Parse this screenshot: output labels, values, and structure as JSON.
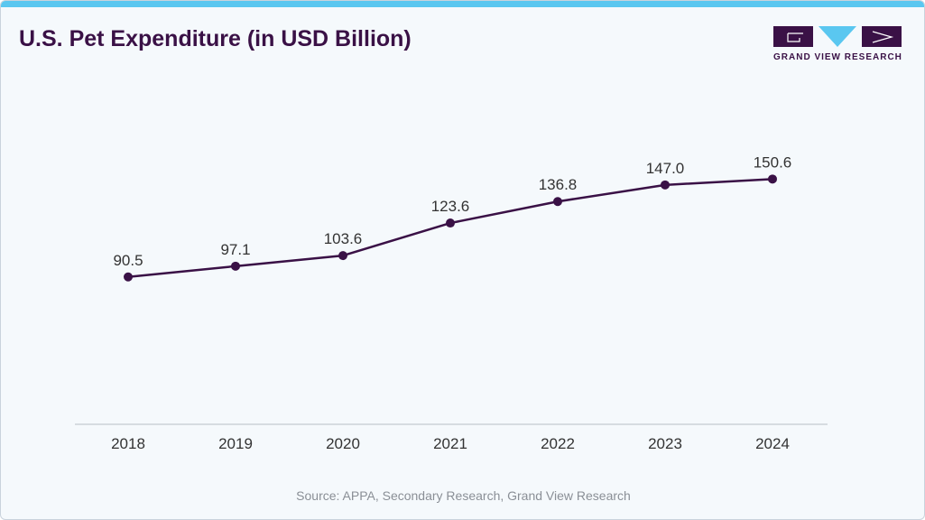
{
  "header": {
    "title": "U.S. Pet Expenditure (in USD Billion)",
    "logo_text": "GRAND VIEW RESEARCH",
    "accent_color": "#5ac7f0",
    "brand_color": "#3a1146"
  },
  "chart_data": {
    "type": "line",
    "title": "U.S. Pet Expenditure (in USD Billion)",
    "xlabel": "",
    "ylabel": "",
    "categories": [
      "2018",
      "2019",
      "2020",
      "2021",
      "2022",
      "2023",
      "2024"
    ],
    "series": [
      {
        "name": "U.S. Pet Expenditure",
        "values": [
          90.5,
          97.1,
          103.6,
          123.6,
          136.8,
          147.0,
          150.6
        ]
      }
    ],
    "data_labels": [
      "90.5",
      "97.1",
      "103.6",
      "123.6",
      "136.8",
      "147.0",
      "150.6"
    ],
    "ylim": [
      0,
      260
    ],
    "grid": false,
    "legend": "none"
  },
  "footer": {
    "source": "Source: APPA, Secondary Research, Grand View Research"
  }
}
